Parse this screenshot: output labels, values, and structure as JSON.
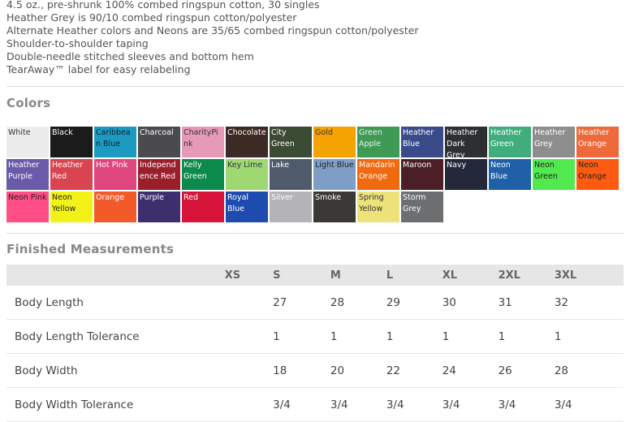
{
  "features": [
    "4.5 oz., pre-shrunk 100% combed ringspun cotton, 30 singles",
    "Heather Grey is 90/10 combed ringspun cotton/polyester",
    "Alternate Heather colors and Neons are 35/65 combed ringspun cotton/polyester",
    "Shoulder-to-shoulder taping",
    "Double-needle stitched sleeves and bottom hem",
    "TearAway™ label for easy relabeling"
  ],
  "colors_title": "Colors",
  "colors": [
    {
      "name": "White",
      "color": "#ececec",
      "text": "#333"
    },
    {
      "name": "Black",
      "color": "#1b1b1b",
      "text": "#fff"
    },
    {
      "name": "Caribbean Blue",
      "color": "#1c9ac0",
      "text": "#123"
    },
    {
      "name": "Charcoal",
      "color": "#4a4a4f",
      "text": "#fff"
    },
    {
      "name": "CharityPink",
      "color": "#e79ab8",
      "text": "#333"
    },
    {
      "name": "Chocolate",
      "color": "#3e2a24",
      "text": "#fff"
    },
    {
      "name": "City Green",
      "color": "#3b4a33",
      "text": "#fff"
    },
    {
      "name": "Gold",
      "color": "#f5a300",
      "text": "#333"
    },
    {
      "name": "Heather Green Apple",
      "color": "#3f9a55",
      "text": "#f0f0f0",
      "label": "Green Apple"
    },
    {
      "name": "Heather Blue",
      "color": "#3a4b8c",
      "text": "#fff"
    },
    {
      "name": "Heather Dark Grey",
      "color": "#2c3033",
      "text": "#fff"
    },
    {
      "name": "Heather Green",
      "color": "#3fae7c",
      "text": "#fff"
    },
    {
      "name": "Heather Grey",
      "color": "#8e8e8e",
      "text": "#fff"
    },
    {
      "name": "Heather Orange",
      "color": "#ee6a3a",
      "text": "#fff"
    },
    {
      "name": "Heather Purple",
      "color": "#6a5baa",
      "text": "#fff"
    },
    {
      "name": "Heather Red",
      "color": "#d8444f",
      "text": "#fff"
    },
    {
      "name": "Hot Pink",
      "color": "#e0467e",
      "text": "#fff"
    },
    {
      "name": "Independence Red",
      "color": "#9b1f2b",
      "text": "#fff"
    },
    {
      "name": "Kelly Green",
      "color": "#0c8a4b",
      "text": "#fff"
    },
    {
      "name": "Key Lime",
      "color": "#9ed873",
      "text": "#333"
    },
    {
      "name": "Lake",
      "color": "#4f5b6b",
      "text": "#fff"
    },
    {
      "name": "Light Blue",
      "color": "#7f9ec7",
      "text": "#222"
    },
    {
      "name": "Mandarin Orange",
      "color": "#f06a10",
      "text": "#fff"
    },
    {
      "name": "Maroon",
      "color": "#4b1f25",
      "text": "#fff"
    },
    {
      "name": "Navy",
      "color": "#23283a",
      "text": "#fff"
    },
    {
      "name": "Neon Blue",
      "color": "#2060a8",
      "text": "#fff"
    },
    {
      "name": "Neon Green",
      "color": "#52e84f",
      "text": "#222"
    },
    {
      "name": "Neon Orange",
      "color": "#ff5a11",
      "text": "#222"
    },
    {
      "name": "Neon Pink",
      "color": "#ff4f86",
      "text": "#222"
    },
    {
      "name": "Neon Yellow",
      "color": "#f3f218",
      "text": "#222"
    },
    {
      "name": "Orange",
      "color": "#f25a29",
      "text": "#fff"
    },
    {
      "name": "Purple",
      "color": "#3d2f6e",
      "text": "#fff"
    },
    {
      "name": "Red",
      "color": "#d6143a",
      "text": "#fff"
    },
    {
      "name": "Royal Blue",
      "color": "#1e4cae",
      "text": "#fff"
    },
    {
      "name": "Silver",
      "color": "#b4b4b6",
      "text": "#fff"
    },
    {
      "name": "Smoke",
      "color": "#3a3937",
      "text": "#fff"
    },
    {
      "name": "Spring Yellow",
      "color": "#eee27a",
      "text": "#333"
    },
    {
      "name": "Storm Grey",
      "color": "#6c6e70",
      "text": "#fff"
    }
  ],
  "measurements_title": "Finished Measurements",
  "measurements": {
    "sizes": [
      "XS",
      "S",
      "M",
      "L",
      "XL",
      "2XL",
      "3XL"
    ],
    "rows": [
      {
        "label": "Body Length",
        "values": [
          "",
          "27",
          "28",
          "29",
          "30",
          "31",
          "32"
        ]
      },
      {
        "label": "Body Length Tolerance",
        "values": [
          "",
          "1",
          "1",
          "1",
          "1",
          "1",
          "1"
        ]
      },
      {
        "label": "Body Width",
        "values": [
          "",
          "18",
          "20",
          "22",
          "24",
          "26",
          "28"
        ]
      },
      {
        "label": "Body Width Tolerance",
        "values": [
          "",
          "3/4",
          "3/4",
          "3/4",
          "3/4",
          "3/4",
          "3/4"
        ]
      }
    ]
  }
}
